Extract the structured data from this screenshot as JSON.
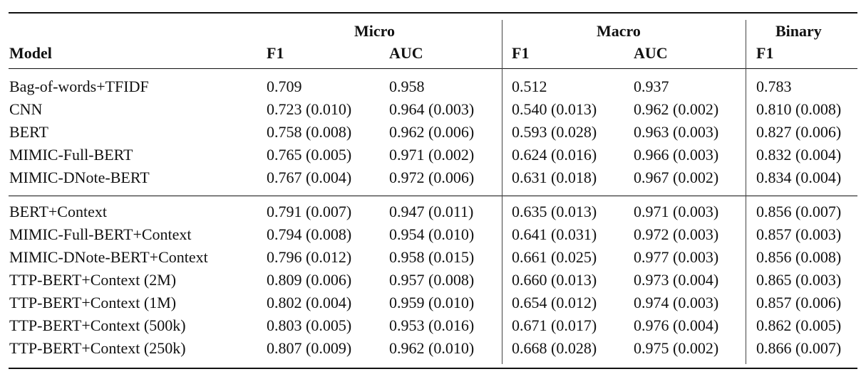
{
  "table": {
    "group_headers": [
      "Micro",
      "Macro",
      "Binary"
    ],
    "column_headers": [
      "Model",
      "F1",
      "AUC",
      "F1",
      "AUC",
      "F1"
    ],
    "section1": [
      [
        "Bag-of-words+TFIDF",
        "0.709",
        "0.958",
        "0.512",
        "0.937",
        "0.783"
      ],
      [
        "CNN",
        "0.723 (0.010)",
        "0.964 (0.003)",
        "0.540 (0.013)",
        "0.962 (0.002)",
        "0.810 (0.008)"
      ],
      [
        "BERT",
        "0.758 (0.008)",
        "0.962 (0.006)",
        "0.593 (0.028)",
        "0.963 (0.003)",
        "0.827 (0.006)"
      ],
      [
        "MIMIC-Full-BERT",
        "0.765 (0.005)",
        "0.971 (0.002)",
        "0.624 (0.016)",
        "0.966 (0.003)",
        "0.832 (0.004)"
      ],
      [
        "MIMIC-DNote-BERT",
        "0.767 (0.004)",
        "0.972 (0.006)",
        "0.631 (0.018)",
        "0.967 (0.002)",
        "0.834 (0.004)"
      ]
    ],
    "section2": [
      [
        "BERT+Context",
        "0.791 (0.007)",
        "0.947 (0.011)",
        "0.635 (0.013)",
        "0.971 (0.003)",
        "0.856 (0.007)"
      ],
      [
        "MIMIC-Full-BERT+Context",
        "0.794 (0.008)",
        "0.954 (0.010)",
        "0.641 (0.031)",
        "0.972 (0.003)",
        "0.857 (0.003)"
      ],
      [
        "MIMIC-DNote-BERT+Context",
        "0.796 (0.012)",
        "0.958 (0.015)",
        "0.661 (0.025)",
        "0.977 (0.003)",
        "0.856 (0.008)"
      ],
      [
        "TTP-BERT+Context (2M)",
        "0.809 (0.006)",
        "0.957 (0.008)",
        "0.660 (0.013)",
        "0.973 (0.004)",
        "0.865 (0.003)"
      ],
      [
        "TTP-BERT+Context (1M)",
        "0.802 (0.004)",
        "0.959 (0.010)",
        "0.654 (0.012)",
        "0.974 (0.003)",
        "0.857 (0.006)"
      ],
      [
        "TTP-BERT+Context (500k)",
        "0.803 (0.005)",
        "0.953 (0.016)",
        "0.671 (0.017)",
        "0.976 (0.004)",
        "0.862 (0.005)"
      ],
      [
        "TTP-BERT+Context (250k)",
        "0.807 (0.009)",
        "0.962 (0.010)",
        "0.668 (0.028)",
        "0.975 (0.002)",
        "0.866 (0.007)"
      ]
    ]
  }
}
